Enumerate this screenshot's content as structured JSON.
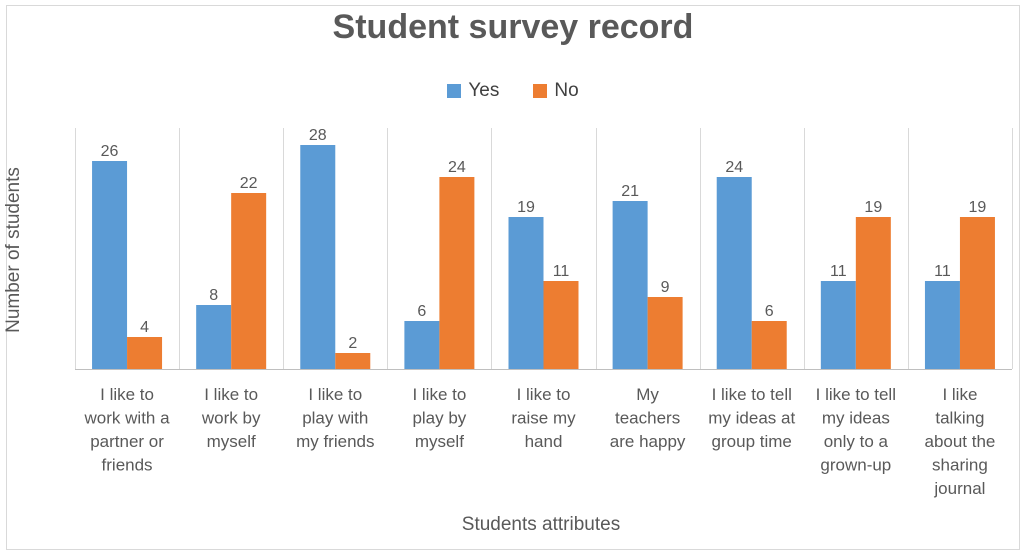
{
  "chart_data": {
    "type": "bar",
    "title": "Student survey record",
    "xlabel": "Students attributes",
    "ylabel": "Number of students",
    "categories": [
      "I like to work with a partner or friends",
      "I like to work by myself",
      "I like to play with my friends",
      "I like to play by myself",
      "I like to raise my hand",
      "My teachers are happy",
      "I like to tell my ideas at group time",
      "I like to tell my ideas only to a grown-up",
      "I like talking about the sharing journal"
    ],
    "category_lines": [
      [
        "I like to",
        "work with a",
        "partner or",
        "friends"
      ],
      [
        "I like to",
        "work by",
        "myself"
      ],
      [
        "I like to",
        "play with",
        "my friends"
      ],
      [
        "I like to",
        "play by",
        "myself"
      ],
      [
        "I like to",
        "raise my",
        "hand"
      ],
      [
        "My",
        "teachers",
        "are happy"
      ],
      [
        "I like to tell",
        "my ideas at",
        "group time"
      ],
      [
        "I like to tell",
        "my ideas",
        "only to a",
        "grown-up"
      ],
      [
        "I like",
        "talking",
        "about the",
        "sharing",
        "journal"
      ]
    ],
    "series": [
      {
        "name": "Yes",
        "color": "#5b9bd5",
        "values": [
          26,
          8,
          28,
          6,
          19,
          21,
          24,
          11,
          11
        ]
      },
      {
        "name": "No",
        "color": "#ed7d31",
        "values": [
          4,
          22,
          2,
          24,
          11,
          9,
          6,
          19,
          19
        ]
      }
    ],
    "ylim": [
      0,
      30
    ],
    "grid": false,
    "legend": "top-center",
    "data_labels": true
  }
}
